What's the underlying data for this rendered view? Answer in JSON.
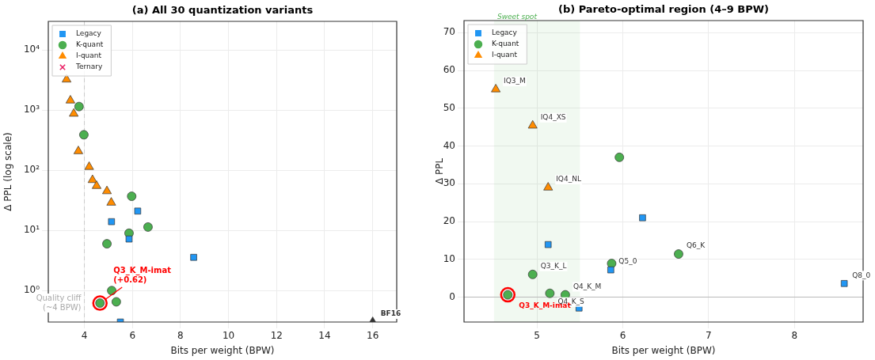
{
  "chart_data": [
    {
      "type": "scatter",
      "title": "(a) All 30 quantization variants",
      "xlabel": "Bits per weight (BPW)",
      "ylabel": "Δ PPL (log scale)",
      "log": "y",
      "grid": true,
      "legend": "top left",
      "xlim": [
        2.5,
        17
      ],
      "xticks": [
        4,
        6,
        8,
        10,
        12,
        14,
        16
      ],
      "ylim": [
        0.3,
        30000
      ],
      "yticks": [
        {
          "value": 1,
          "label": "10⁰"
        },
        {
          "value": 10,
          "label": "10¹"
        },
        {
          "value": 100,
          "label": "10²"
        },
        {
          "value": 1000,
          "label": "10³"
        },
        {
          "value": 10000,
          "label": "10⁴"
        }
      ],
      "ref_lines": [
        {
          "axis": "x",
          "value": 4,
          "label": "Quality cliff\n(~4 BPW)",
          "color": "#cccccc",
          "line_style": "dashed"
        }
      ],
      "series": [
        {
          "name": "Legacy",
          "color": "#2196f3",
          "marker": "square",
          "x": [
            5.13,
            5.86,
            6.22,
            8.55,
            5.5
          ],
          "values": [
            14,
            7.2,
            21,
            3.57,
            0.3
          ]
        },
        {
          "name": "K-quant",
          "color": "#4caf50",
          "marker": "circle",
          "x": [
            3.78,
            3.98,
            4.94,
            5.14,
            5.33,
            4.65,
            5.86,
            5.97,
            6.65
          ],
          "values": [
            1150,
            390,
            6,
            1,
            0.65,
            0.62,
            9,
            37,
            11.4
          ]
        },
        {
          "name": "I-quant",
          "color": "#ff8c00",
          "marker": "triangle",
          "x": [
            3.26,
            3.42,
            3.56,
            3.75,
            4.2,
            4.34,
            4.51,
            4.94,
            5.12
          ],
          "values": [
            3240,
            1450,
            875,
            208,
            114,
            69,
            55,
            45,
            29
          ]
        },
        {
          "name": "Ternary",
          "color": "#e91e63",
          "marker": "cross"
        },
        {
          "color": "#333333",
          "marker": "triangle",
          "x": [
            16
          ],
          "values": [
            0.3
          ]
        },
        {
          "color": "#ff0000",
          "marker": "circle",
          "x": [
            4.65
          ],
          "values": [
            0.62
          ]
        }
      ],
      "annotations": [
        {
          "text": "BF16",
          "x": 16,
          "y": 0.3
        },
        {
          "text": "Q3_K_M-imat\n(+0.62)",
          "x": 4.65,
          "y": 0.62
        }
      ]
    },
    {
      "type": "scatter",
      "title": "(b) Pareto-optimal region (4–9 BPW)",
      "xlabel": "Bits per weight (BPW)",
      "ylabel": "Δ PPL",
      "grid": true,
      "legend": "top left",
      "xlim": [
        4.15,
        8.8
      ],
      "xticks": [
        5,
        6,
        7,
        8
      ],
      "ylim": [
        -6.6,
        73.2
      ],
      "yticks": [
        0,
        10,
        20,
        30,
        40,
        50,
        60,
        70
      ],
      "bands": [
        {
          "axis": "x",
          "from": 4.5,
          "to": 5.5,
          "label": "Sweet spot",
          "color": "#4caf50"
        }
      ],
      "ref_lines": [
        {
          "axis": "y",
          "value": 0,
          "color": "#bbbbbb",
          "line_style": "solid"
        }
      ],
      "series": [
        {
          "name": "Legacy",
          "color": "#2196f3",
          "marker": "square",
          "x": [
            5.13,
            5.86,
            6.23,
            5.49,
            8.58
          ],
          "values": [
            13.9,
            7.2,
            21,
            -2.9,
            3.6
          ]
        },
        {
          "name": "K-quant",
          "color": "#4caf50",
          "marker": "circle",
          "x": [
            4.66,
            4.95,
            5.15,
            5.33,
            5.87,
            5.96,
            6.65
          ],
          "values": [
            0.6,
            6,
            1,
            0.6,
            8.9,
            37,
            11.4
          ]
        },
        {
          "name": "I-quant",
          "color": "#ff8c00",
          "marker": "triangle",
          "x": [
            4.52,
            4.95,
            5.13
          ],
          "values": [
            55,
            45.4,
            29
          ]
        },
        {
          "color": "#ff0000",
          "marker": "circle",
          "x": [
            4.66
          ],
          "values": [
            0.6
          ]
        }
      ],
      "annotations": [
        {
          "text": "IQ3_M",
          "x": 4.52,
          "y": 55
        },
        {
          "text": "IQ4_XS",
          "x": 4.95,
          "y": 45.4
        },
        {
          "text": "IQ4_NL",
          "x": 5.13,
          "y": 29
        },
        {
          "text": "Q6_K",
          "x": 6.65,
          "y": 11.4
        },
        {
          "text": "Q3_K_L",
          "x": 4.95,
          "y": 6
        },
        {
          "text": "Q5_0",
          "x": 5.86,
          "y": 7.2
        },
        {
          "text": "Q4_K_M",
          "x": 5.33,
          "y": 0.6
        },
        {
          "text": "Q4_K_S",
          "x": 5.15,
          "y": 1
        },
        {
          "text": "Q8_0",
          "x": 8.58,
          "y": 3.6
        },
        {
          "text": "Q3_K_M-imat",
          "x": 4.66,
          "y": 0.6
        }
      ]
    }
  ]
}
